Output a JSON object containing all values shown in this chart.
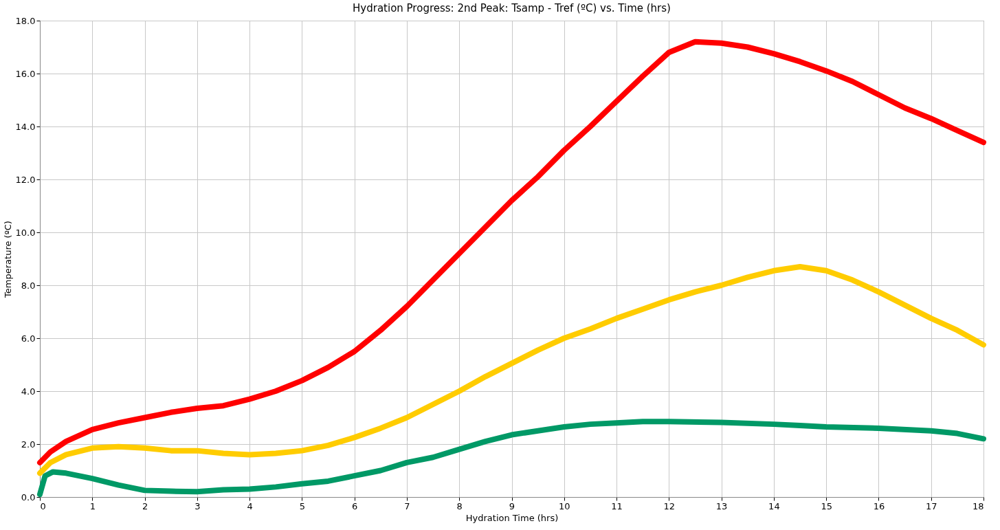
{
  "chart_data": {
    "type": "line",
    "title": "Hydration Progress: 2nd Peak: Tsamp - Tref (ºC) vs. Time (hrs)",
    "xlabel": "Hydration Time (hrs)",
    "ylabel": "Temperature (ºC)",
    "xlim": [
      0,
      18
    ],
    "ylim": [
      0,
      18
    ],
    "xticks": [
      0,
      1,
      2,
      3,
      4,
      5,
      6,
      7,
      8,
      9,
      10,
      11,
      12,
      13,
      14,
      15,
      16,
      17,
      18
    ],
    "yticks": [
      {
        "value": 0,
        "label": "0.0"
      },
      {
        "value": 2,
        "label": "2.0"
      },
      {
        "value": 4,
        "label": "4.0"
      },
      {
        "value": 6,
        "label": "6.0"
      },
      {
        "value": 8,
        "label": "8.0"
      },
      {
        "value": 10,
        "label": "10.0"
      },
      {
        "value": 12,
        "label": "12.0"
      },
      {
        "value": 14,
        "label": "14.0"
      },
      {
        "value": 16,
        "label": "16.0"
      },
      {
        "value": 18,
        "label": "18.0"
      }
    ],
    "grid": true,
    "legend": false,
    "line_style": "solid",
    "series": [
      {
        "color": "#ff0000",
        "x": [
          0,
          0.2,
          0.5,
          1,
          1.5,
          2,
          2.5,
          3,
          3.5,
          4,
          4.5,
          5,
          5.5,
          6,
          6.5,
          7,
          7.5,
          8,
          8.5,
          9,
          9.5,
          10,
          10.5,
          11,
          11.5,
          12,
          12.5,
          13,
          13.5,
          14,
          14.5,
          15,
          15.5,
          16,
          16.5,
          17,
          17.5,
          18
        ],
        "values": [
          1.3,
          1.7,
          2.1,
          2.55,
          2.8,
          3.0,
          3.2,
          3.35,
          3.45,
          3.7,
          4.0,
          4.4,
          4.9,
          5.5,
          6.3,
          7.2,
          8.2,
          9.2,
          10.2,
          11.2,
          12.1,
          13.1,
          14.0,
          14.95,
          15.9,
          16.8,
          17.2,
          17.15,
          17.0,
          16.75,
          16.45,
          16.1,
          15.7,
          15.2,
          14.7,
          14.3,
          13.85,
          13.4
        ]
      },
      {
        "color": "#ffcc00",
        "x": [
          0,
          0.2,
          0.5,
          1,
          1.5,
          2,
          2.5,
          3,
          3.5,
          4,
          4.5,
          5,
          5.5,
          6,
          6.5,
          7,
          7.5,
          8,
          8.5,
          9,
          9.5,
          10,
          10.5,
          11,
          11.5,
          12,
          12.5,
          13,
          13.5,
          14,
          14.5,
          15,
          15.5,
          16,
          16.5,
          17,
          17.5,
          18
        ],
        "values": [
          0.9,
          1.3,
          1.6,
          1.85,
          1.9,
          1.85,
          1.75,
          1.75,
          1.65,
          1.6,
          1.65,
          1.75,
          1.95,
          2.25,
          2.6,
          3.0,
          3.5,
          4.0,
          4.55,
          5.05,
          5.55,
          6.0,
          6.35,
          6.75,
          7.1,
          7.45,
          7.75,
          8.0,
          8.3,
          8.55,
          8.7,
          8.55,
          8.2,
          7.75,
          7.25,
          6.75,
          6.3,
          5.75
        ]
      },
      {
        "color": "#009966",
        "x": [
          0,
          0.1,
          0.25,
          0.5,
          1,
          1.5,
          2,
          2.5,
          3,
          3.5,
          4,
          4.5,
          5,
          5.5,
          6,
          6.5,
          7,
          7.5,
          8,
          8.5,
          9,
          9.5,
          10,
          10.5,
          11,
          11.5,
          12,
          13,
          14,
          14.5,
          15,
          16,
          17,
          17.5,
          18
        ],
        "values": [
          0.1,
          0.8,
          0.95,
          0.9,
          0.7,
          0.45,
          0.25,
          0.22,
          0.2,
          0.27,
          0.3,
          0.38,
          0.5,
          0.6,
          0.8,
          1.0,
          1.3,
          1.5,
          1.8,
          2.1,
          2.35,
          2.5,
          2.65,
          2.75,
          2.8,
          2.85,
          2.85,
          2.82,
          2.75,
          2.7,
          2.65,
          2.6,
          2.5,
          2.4,
          2.2
        ]
      }
    ]
  }
}
